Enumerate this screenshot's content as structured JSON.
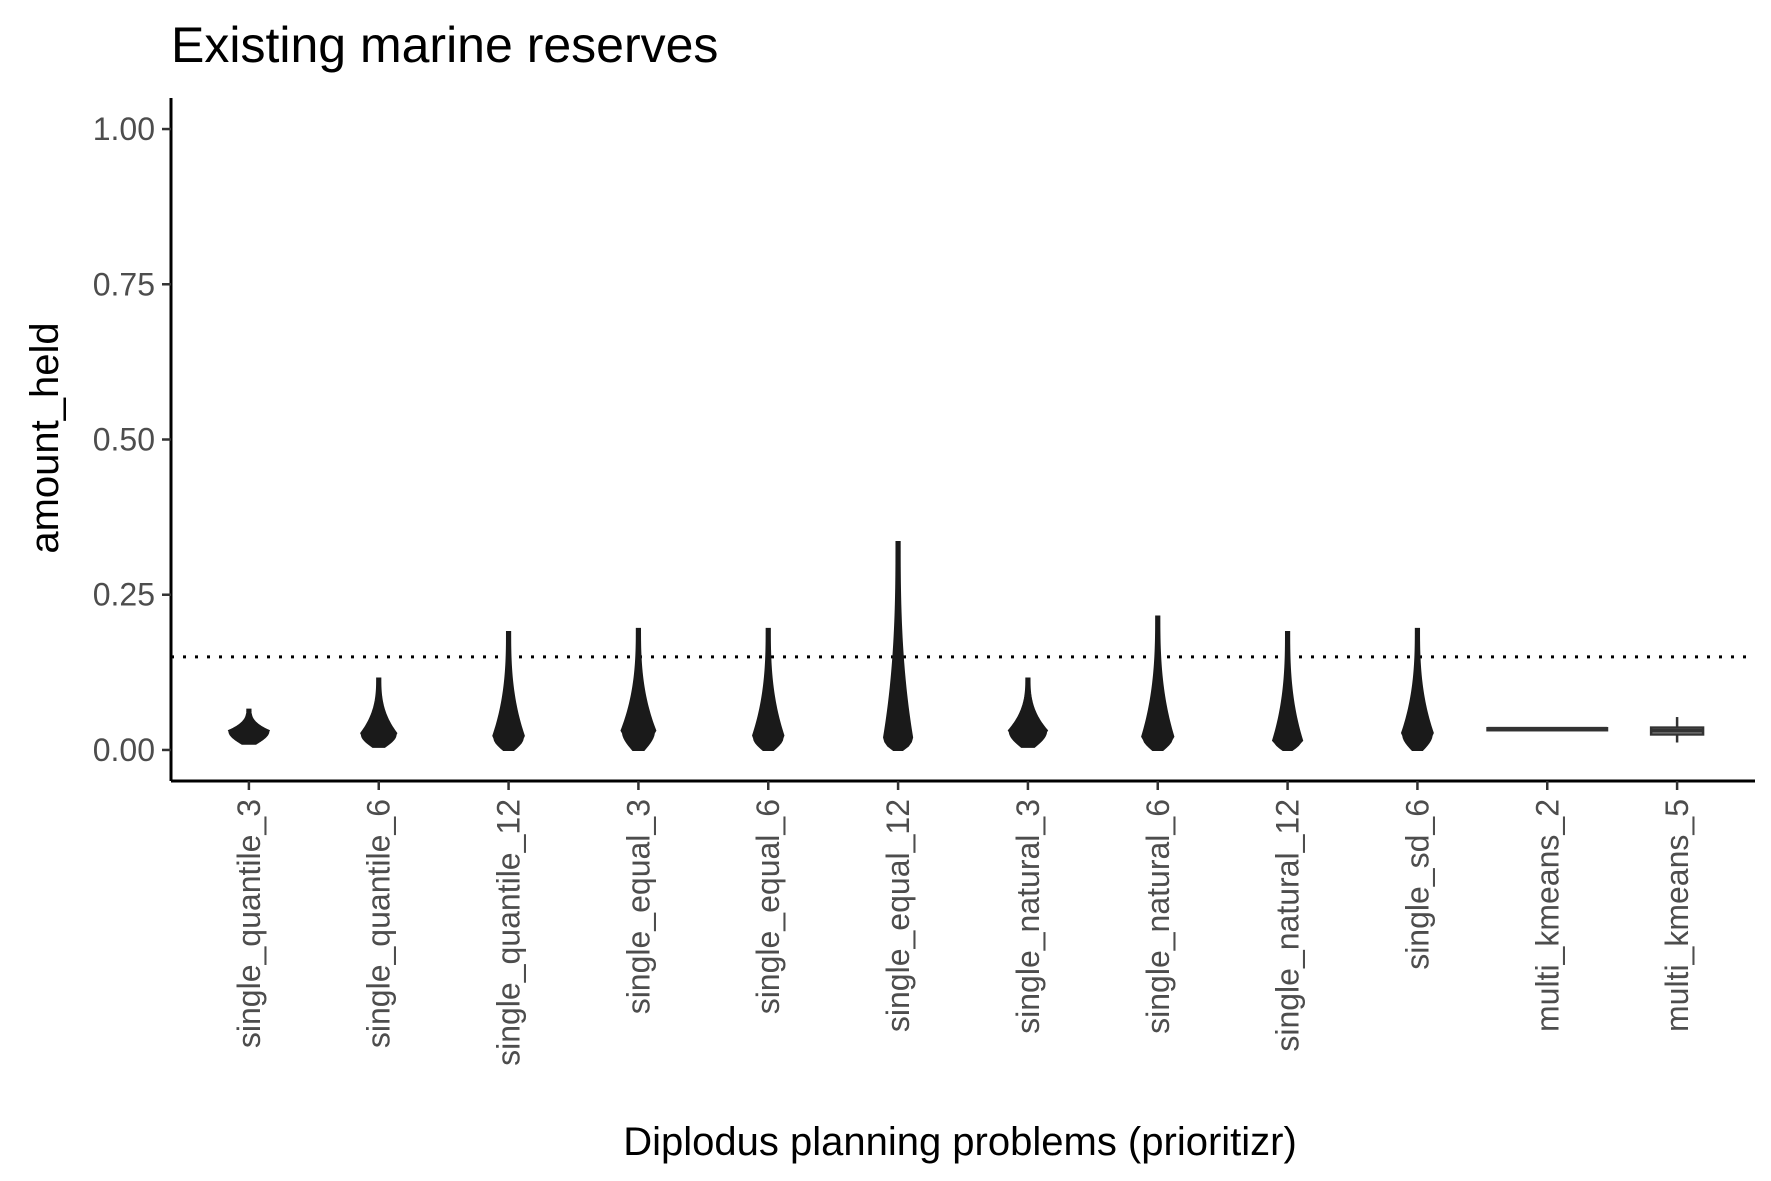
{
  "chart_data": {
    "type": "violin",
    "title": "Existing marine reserves",
    "xlabel": "Diplodus planning problems (prioritizr)",
    "ylabel": "amount_held",
    "ylim": [
      -0.05,
      1.05
    ],
    "yticks": [
      0.0,
      0.25,
      0.5,
      0.75,
      1.0
    ],
    "ytick_labels": [
      "0.00",
      "0.25",
      "0.50",
      "0.75",
      "1.00"
    ],
    "reference_line": {
      "y": 0.15,
      "style": "dotted"
    },
    "grid": false,
    "categories": [
      "single_quantile_3",
      "single_quantile_6",
      "single_quantile_12",
      "single_equal_3",
      "single_equal_6",
      "single_equal_12",
      "single_natural_3",
      "single_natural_6",
      "single_natural_12",
      "single_sd_6",
      "multi_kmeans_2",
      "multi_kmeans_5"
    ],
    "series": [
      {
        "category": "single_quantile_3",
        "geom": "violin",
        "min": 0.01,
        "max": 0.065,
        "mode": 0.03,
        "halfwidth": 0.15
      },
      {
        "category": "single_quantile_6",
        "geom": "violin",
        "min": 0.005,
        "max": 0.115,
        "mode": 0.025,
        "halfwidth": 0.13
      },
      {
        "category": "single_quantile_12",
        "geom": "violin",
        "min": 0.0,
        "max": 0.19,
        "mode": 0.02,
        "halfwidth": 0.11
      },
      {
        "category": "single_equal_3",
        "geom": "violin",
        "min": 0.0,
        "max": 0.195,
        "mode": 0.03,
        "halfwidth": 0.12
      },
      {
        "category": "single_equal_6",
        "geom": "violin",
        "min": 0.0,
        "max": 0.195,
        "mode": 0.02,
        "halfwidth": 0.11
      },
      {
        "category": "single_equal_12",
        "geom": "violin",
        "min": 0.0,
        "max": 0.335,
        "mode": 0.015,
        "halfwidth": 0.1
      },
      {
        "category": "single_natural_3",
        "geom": "violin",
        "min": 0.005,
        "max": 0.115,
        "mode": 0.03,
        "halfwidth": 0.14
      },
      {
        "category": "single_natural_6",
        "geom": "violin",
        "min": 0.0,
        "max": 0.215,
        "mode": 0.02,
        "halfwidth": 0.11
      },
      {
        "category": "single_natural_12",
        "geom": "violin",
        "min": 0.0,
        "max": 0.19,
        "mode": 0.015,
        "halfwidth": 0.1
      },
      {
        "category": "single_sd_6",
        "geom": "violin",
        "min": 0.0,
        "max": 0.195,
        "mode": 0.025,
        "halfwidth": 0.11
      },
      {
        "category": "multi_kmeans_2",
        "geom": "boxplot",
        "min": 0.033,
        "q1": 0.033,
        "median": 0.034,
        "q3": 0.035,
        "max": 0.035,
        "halfwidth": 0.46
      },
      {
        "category": "multi_kmeans_5",
        "geom": "boxplot",
        "min": 0.012,
        "q1": 0.025,
        "median": 0.031,
        "q3": 0.036,
        "max": 0.053,
        "halfwidth": 0.2
      }
    ]
  }
}
